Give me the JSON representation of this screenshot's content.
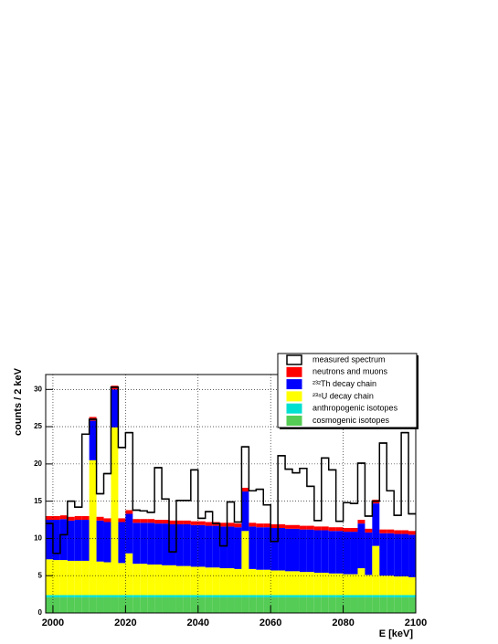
{
  "chart_data": {
    "type": "stacked_histogram",
    "x_label": "E [keV]",
    "y_label": "counts / 2 keV",
    "bins": [
      1998,
      2000,
      2002,
      2004,
      2006,
      2008,
      2010,
      2012,
      2014,
      2016,
      2018,
      2020,
      2022,
      2024,
      2026,
      2028,
      2030,
      2032,
      2034,
      2036,
      2038,
      2040,
      2042,
      2044,
      2046,
      2048,
      2050,
      2052,
      2054,
      2056,
      2058,
      2060,
      2062,
      2064,
      2066,
      2068,
      2070,
      2072,
      2074,
      2076,
      2078,
      2080,
      2082,
      2084,
      2086,
      2088,
      2090,
      2092,
      2094,
      2096,
      2098,
      2100
    ],
    "xlim": [
      1998,
      2100
    ],
    "xticks": [
      2000,
      2020,
      2040,
      2060,
      2080,
      2100
    ],
    "ylim": [
      0,
      32
    ],
    "yticks": [
      0,
      5,
      10,
      15,
      20,
      25,
      30
    ],
    "grid": true,
    "legend": "top-right",
    "measured": {
      "name": "measured spectrum",
      "color": "#000000",
      "values": [
        12,
        8,
        10.5,
        15,
        14.2,
        24,
        26,
        16,
        18.7,
        30.3,
        22.2,
        24.2,
        13.8,
        13.7,
        13.5,
        19.5,
        15.3,
        8.2,
        15.1,
        15.1,
        19.2,
        12.7,
        13.6,
        12,
        9,
        14.9,
        12.2,
        22.3,
        16.4,
        16.6,
        14.5,
        9.6,
        21.1,
        19.3,
        18.8,
        19.4,
        17,
        12.4,
        20.8,
        19.2,
        12.3,
        14.8,
        14.7,
        20.1,
        13,
        15,
        22.8,
        16.4,
        13.1,
        24.2,
        13.3
      ]
    },
    "series": [
      {
        "name": "neutrons and muons",
        "color": "#ff0000",
        "values": [
          0.5,
          0.5,
          0.5,
          0.5,
          0.5,
          0.5,
          0.5,
          0.5,
          0.5,
          0.5,
          0.5,
          0.5,
          0.5,
          0.5,
          0.5,
          0.5,
          0.5,
          0.5,
          0.5,
          0.5,
          0.5,
          0.5,
          0.5,
          0.5,
          0.5,
          0.5,
          0.5,
          0.5,
          0.5,
          0.5,
          0.5,
          0.5,
          0.5,
          0.5,
          0.5,
          0.5,
          0.5,
          0.5,
          0.5,
          0.5,
          0.5,
          0.5,
          0.5,
          0.5,
          0.5,
          0.5,
          0.5,
          0.5,
          0.5,
          0.5,
          0.5
        ]
      },
      {
        "name": "²³²Th decay chain",
        "color": "#0000ff",
        "values": [
          5.3,
          5.4,
          5.5,
          5.4,
          5.5,
          5.5,
          5.3,
          5.5,
          5.4,
          5.1,
          5.5,
          5.3,
          5.5,
          5.5,
          5.6,
          5.5,
          5.6,
          5.5,
          5.6,
          5.6,
          5.6,
          5.6,
          5.6,
          5.6,
          5.6,
          5.6,
          5.6,
          5.3,
          5.7,
          5.7,
          5.7,
          5.7,
          5.7,
          5.7,
          5.7,
          5.7,
          5.7,
          5.7,
          5.7,
          5.7,
          5.7,
          5.7,
          5.7,
          6.0,
          5.7,
          5.7,
          5.7,
          5.7,
          5.7,
          5.7,
          5.7
        ]
      },
      {
        "name": "²³⁸U decay chain",
        "color": "#ffff00",
        "values": [
          4.8,
          4.7,
          4.7,
          4.6,
          4.6,
          4.6,
          18.1,
          4.5,
          4.4,
          22.5,
          4.3,
          5.6,
          4.2,
          4.2,
          4.1,
          4.1,
          4.0,
          4.0,
          3.9,
          3.9,
          3.8,
          3.8,
          3.7,
          3.7,
          3.6,
          3.6,
          3.5,
          8.6,
          3.5,
          3.4,
          3.4,
          3.3,
          3.3,
          3.2,
          3.2,
          3.1,
          3.1,
          3.0,
          3.0,
          2.9,
          2.9,
          2.8,
          2.8,
          3.6,
          2.7,
          6.6,
          2.6,
          2.6,
          2.5,
          2.5,
          2.4
        ]
      },
      {
        "name": "anthropogenic isotopes",
        "color": "#00e0d0",
        "values": [
          0.3,
          0.3,
          0.3,
          0.3,
          0.3,
          0.3,
          0.3,
          0.3,
          0.3,
          0.3,
          0.3,
          0.3,
          0.3,
          0.3,
          0.3,
          0.3,
          0.3,
          0.3,
          0.3,
          0.3,
          0.3,
          0.3,
          0.3,
          0.3,
          0.3,
          0.3,
          0.3,
          0.3,
          0.3,
          0.3,
          0.3,
          0.3,
          0.3,
          0.3,
          0.3,
          0.3,
          0.3,
          0.3,
          0.3,
          0.3,
          0.3,
          0.3,
          0.3,
          0.3,
          0.3,
          0.3,
          0.3,
          0.3,
          0.3,
          0.3,
          0.3
        ]
      },
      {
        "name": "cosmogenic isotopes",
        "color": "#55cc55",
        "values": [
          2.1,
          2.1,
          2.1,
          2.1,
          2.1,
          2.1,
          2.1,
          2.1,
          2.1,
          2.1,
          2.1,
          2.1,
          2.1,
          2.1,
          2.1,
          2.1,
          2.1,
          2.1,
          2.1,
          2.1,
          2.1,
          2.1,
          2.1,
          2.1,
          2.1,
          2.1,
          2.1,
          2.1,
          2.1,
          2.1,
          2.1,
          2.1,
          2.1,
          2.1,
          2.1,
          2.1,
          2.1,
          2.1,
          2.1,
          2.1,
          2.1,
          2.1,
          2.1,
          2.1,
          2.1,
          2.1,
          2.1,
          2.1,
          2.1,
          2.1,
          2.1
        ]
      }
    ]
  }
}
